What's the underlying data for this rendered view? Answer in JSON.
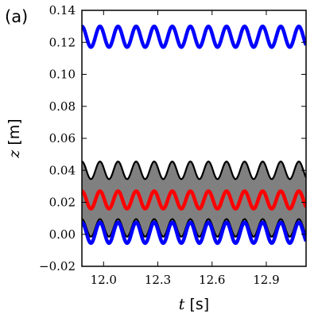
{
  "chart_data": {
    "type": "line",
    "panel_label": "(a)",
    "title": "",
    "xlabel_var": "t",
    "xlabel_unit": " [s]",
    "ylabel_var": "z",
    "ylabel_unit": " [m]",
    "xlim": [
      11.88,
      13.12
    ],
    "ylim": [
      -0.02,
      0.14
    ],
    "xticks": [
      12.0,
      12.3,
      12.6,
      12.9
    ],
    "xtick_labels": [
      "12.0",
      "12.3",
      "12.6",
      "12.9"
    ],
    "yticks": [
      -0.02,
      0.0,
      0.02,
      0.04,
      0.06,
      0.08,
      0.1,
      0.12,
      0.14
    ],
    "ytick_labels": [
      "−0.02",
      "0.00",
      "0.02",
      "0.04",
      "0.06",
      "0.08",
      "0.10",
      "0.12",
      "0.14"
    ],
    "grid": false,
    "legend": "none",
    "band": {
      "fill_color": "#808080",
      "edge_color": "#000000",
      "upper": {
        "mean": 0.04,
        "amplitude": 0.0055,
        "period": 0.1,
        "phase": 0.0
      },
      "lower": {
        "mean": 0.004,
        "amplitude": 0.0055,
        "period": 0.1,
        "phase": 0.0
      }
    },
    "series": [
      {
        "color": "#0000ff",
        "mean": 0.1235,
        "amplitude": 0.0065,
        "period": 0.1,
        "phase": 0.0
      },
      {
        "color": "#ff0000",
        "mean": 0.0215,
        "amplitude": 0.0055,
        "period": 0.1,
        "phase": 0.0
      },
      {
        "color": "#0000ff",
        "mean": 0.001,
        "amplitude": 0.0065,
        "period": 0.1,
        "phase": 0.0
      }
    ]
  }
}
